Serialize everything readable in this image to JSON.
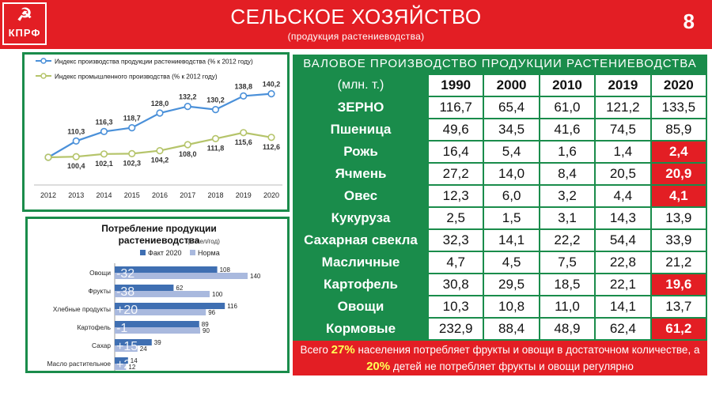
{
  "header": {
    "logo_symbol": "☭",
    "logo_text": "КПРФ",
    "title": "СЕЛЬСКОЕ ХОЗЯЙСТВО",
    "subtitle": "(продукция растениеводства)",
    "page_number": "8"
  },
  "colors": {
    "red": "#e31e24",
    "green": "#1a8c4b",
    "blue_line": "#4a90d9",
    "olive_line": "#b5c46a",
    "bar_fact": "#3f6fb2",
    "bar_norm": "#a9b9de"
  },
  "chart_data": [
    {
      "type": "line",
      "x": [
        "2012",
        "2013",
        "2014",
        "2015",
        "2016",
        "2017",
        "2018",
        "2019",
        "2020"
      ],
      "series": [
        {
          "name": "Индекс производства продукции растениеводства (% к 2012 году)",
          "values": [
            null,
            110.3,
            116.3,
            118.7,
            128.0,
            132.2,
            130.2,
            138.8,
            140.2
          ]
        },
        {
          "name": "Индекс промышленного производства (% к 2012 году)",
          "values": [
            null,
            100.4,
            102.1,
            102.3,
            104.2,
            108.0,
            111.8,
            115.6,
            112.6
          ]
        }
      ],
      "series_labels": [
        [
          "",
          "110,3",
          "116,3",
          "118,7",
          "128,0",
          "132,2",
          "130,2",
          "138,8",
          "140,2"
        ],
        [
          "",
          "100,4",
          "102,1",
          "102,3",
          "104,2",
          "108,0",
          "111,8",
          "115,6",
          "112,6"
        ]
      ],
      "ylim": [
        95,
        145
      ]
    },
    {
      "type": "bar",
      "title": "Потребление продукции",
      "title2": "растениеводства",
      "unit": "(кг/чел/год)",
      "categories": [
        "Овощи",
        "Фрукты",
        "Хлебные продукты",
        "Картофель",
        "Сахар",
        "Масло растительное"
      ],
      "series": [
        {
          "name": "Факт 2020",
          "values": [
            108,
            62,
            116,
            89,
            39,
            14
          ]
        },
        {
          "name": "Норма",
          "values": [
            140,
            100,
            96,
            90,
            24,
            12
          ]
        }
      ],
      "diff_labels": [
        "-32",
        "-38",
        "+20",
        "-1",
        "+15",
        "+2"
      ],
      "xlim": [
        0,
        150
      ]
    }
  ],
  "table": {
    "caption": "ВАЛОВОЕ ПРОИЗВОДСТВО ПРОДУКЦИИ РАСТЕНИЕВОДСТВА",
    "unit": "(млн. т.)",
    "years": [
      "1990",
      "2000",
      "2010",
      "2019",
      "2020"
    ],
    "rows": [
      {
        "name": "ЗЕРНО",
        "values": [
          "116,7",
          "65,4",
          "61,0",
          "121,2",
          "133,5"
        ],
        "highlight": false
      },
      {
        "name": "Пшеница",
        "values": [
          "49,6",
          "34,5",
          "41,6",
          "74,5",
          "85,9"
        ],
        "highlight": false
      },
      {
        "name": "Рожь",
        "values": [
          "16,4",
          "5,4",
          "1,6",
          "1,4",
          "2,4"
        ],
        "highlight": true
      },
      {
        "name": "Ячмень",
        "values": [
          "27,2",
          "14,0",
          "8,4",
          "20,5",
          "20,9"
        ],
        "highlight": true
      },
      {
        "name": "Овес",
        "values": [
          "12,3",
          "6,0",
          "3,2",
          "4,4",
          "4,1"
        ],
        "highlight": true
      },
      {
        "name": "Кукуруза",
        "values": [
          "2,5",
          "1,5",
          "3,1",
          "14,3",
          "13,9"
        ],
        "highlight": false
      },
      {
        "name": "Сахарная свекла",
        "values": [
          "32,3",
          "14,1",
          "22,2",
          "54,4",
          "33,9"
        ],
        "highlight": false
      },
      {
        "name": "Масличные",
        "values": [
          "4,7",
          "4,5",
          "7,5",
          "22,8",
          "21,2"
        ],
        "highlight": false
      },
      {
        "name": "Картофель",
        "values": [
          "30,8",
          "29,5",
          "18,5",
          "22,1",
          "19,6"
        ],
        "highlight": true
      },
      {
        "name": "Овощи",
        "values": [
          "10,3",
          "10,8",
          "11,0",
          "14,1",
          "13,7"
        ],
        "highlight": false
      },
      {
        "name": "Кормовые",
        "values": [
          "232,9",
          "88,4",
          "48,9",
          "62,4",
          "61,2"
        ],
        "highlight": true
      }
    ]
  },
  "note": {
    "part1": "Всего ",
    "pct1": "27%",
    "part2": " населения потребляет фрукты и овощи в достаточном количестве, а ",
    "pct2": "20%",
    "part3": " детей не потребляет фрукты и овощи регулярно"
  }
}
